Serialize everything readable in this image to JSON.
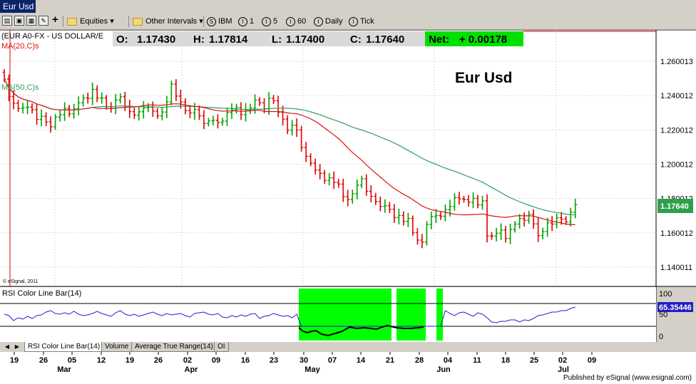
{
  "window": {
    "tab_title": "Eur Usd"
  },
  "toolbar": {
    "equities_label": "Equities",
    "intervals_label": "Other Intervals",
    "buttons": [
      {
        "icon": "S",
        "label": "IBM"
      },
      {
        "icon": "I",
        "label": "1"
      },
      {
        "icon": "I",
        "label": "5"
      },
      {
        "icon": "I",
        "label": "60"
      },
      {
        "icon": "I",
        "label": "Daily"
      },
      {
        "icon": "I",
        "label": "Tick"
      }
    ]
  },
  "quote": {
    "symbol": "(EUR A0-FX - US DOLLAR/E",
    "ma20_label": "MA(20,C)s",
    "ma50_label": "MA(50,C)s",
    "open_label": "O:",
    "open": "1.17430",
    "high_label": "H:",
    "high": "1.17814",
    "low_label": "L:",
    "low": "1.17400",
    "close_label": "C:",
    "close": "1.17640",
    "net_label": "Net:",
    "net": "+ 0.00178",
    "chart_title": "Eur Usd",
    "last_price_tag": "1.17640",
    "copyright": "© eSignal, 2011"
  },
  "rsi": {
    "label": "RSI Color Line Bar(14)",
    "value_tag": "65.35446",
    "axis": [
      "100",
      "50",
      "0"
    ]
  },
  "tabs": [
    "RSI Color Line Bar(14)",
    "Volume",
    "Average True Range(14)",
    "OI"
  ],
  "footer": {
    "published": "Published by eSignal (www.esignal.com)"
  },
  "colors": {
    "up_bar": "#00a000",
    "down_bar": "#e00000",
    "ma20": "#e01010",
    "ma50": "#2e9e5e",
    "rsi_line": "#2020d0",
    "rsi_zone": "#00ff00",
    "net_bg": "#00e000",
    "price_tag_bg": "#2ea04a",
    "rsi_tag_bg": "#2020c0"
  },
  "chart_data": {
    "type": "ohlc",
    "y_ticks": [
      "1.260013",
      "1.240012",
      "1.220012",
      "1.200012",
      "1.180012",
      "1.160012",
      "1.140011"
    ],
    "ylim": [
      1.13,
      1.275
    ],
    "day_ticks": [
      "19",
      "26",
      "05",
      "12",
      "19",
      "26",
      "02",
      "09",
      "16",
      "23",
      "30",
      "07",
      "14",
      "21",
      "28",
      "04",
      "11",
      "18",
      "25",
      "02",
      "09"
    ],
    "month_labels": [
      "Mar",
      "Apr",
      "May",
      "Jun",
      "Jul"
    ],
    "series": [
      {
        "name": "EUR A0-FX",
        "closes": [
          1.2496,
          1.2394,
          1.2355,
          1.2325,
          1.2329,
          1.2333,
          1.2318,
          1.2261,
          1.2279,
          1.2246,
          1.2218,
          1.2275,
          1.2288,
          1.2326,
          1.2294,
          1.2323,
          1.2358,
          1.2386,
          1.2384,
          1.2436,
          1.2386,
          1.2386,
          1.2336,
          1.2327,
          1.2374,
          1.2393,
          1.2338,
          1.2307,
          1.2286,
          1.2306,
          1.2328,
          1.2332,
          1.2309,
          1.2282,
          1.2304,
          1.2363,
          1.2467,
          1.2397,
          1.2362,
          1.2313,
          1.2299,
          1.2318,
          1.2282,
          1.2238,
          1.2253,
          1.2256,
          1.2244,
          1.2251,
          1.2301,
          1.2317,
          1.2331,
          1.2289,
          1.2317,
          1.2328,
          1.2374,
          1.2358,
          1.2323,
          1.2384,
          1.237,
          1.2303,
          1.2263,
          1.2198,
          1.2227,
          1.2199,
          1.2097,
          1.2046,
          1.2006,
          1.1966,
          1.1947,
          1.1905,
          1.192,
          1.1894,
          1.1884,
          1.1811,
          1.1794,
          1.1828,
          1.1878,
          1.1915,
          1.1842,
          1.1813,
          1.1782,
          1.1754,
          1.1758,
          1.1737,
          1.1689,
          1.1701,
          1.1667,
          1.1684,
          1.1601,
          1.1558,
          1.1546,
          1.1649,
          1.1695,
          1.1701,
          1.1697,
          1.1735,
          1.1753,
          1.1806,
          1.1798,
          1.1794,
          1.1779,
          1.1801,
          1.1763,
          1.1787,
          1.1582,
          1.1581,
          1.1598,
          1.1616,
          1.1567,
          1.162,
          1.1651,
          1.1683,
          1.1673,
          1.1708,
          1.1652,
          1.1584,
          1.1608,
          1.1658,
          1.1651,
          1.1688,
          1.168,
          1.1664,
          1.172,
          1.1764
        ]
      },
      {
        "name": "MA(20,C)s"
      },
      {
        "name": "MA(50,C)s"
      }
    ]
  }
}
